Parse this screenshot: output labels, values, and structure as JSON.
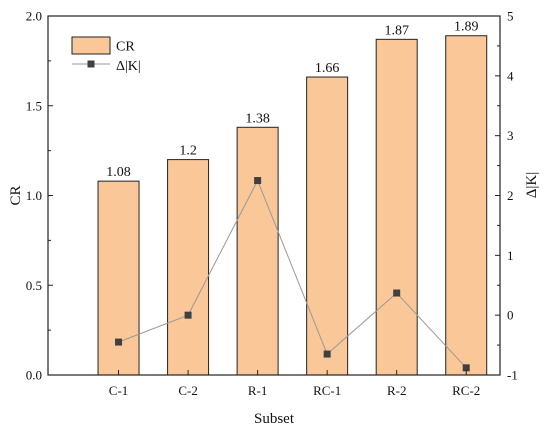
{
  "chart_data": {
    "type": "bar",
    "categories": [
      "C-1",
      "C-2",
      "R-1",
      "RC-1",
      "R-2",
      "RC-2"
    ],
    "series": [
      {
        "name": "CR",
        "type": "bar",
        "axis": "left",
        "values": [
          1.08,
          1.2,
          1.38,
          1.66,
          1.87,
          1.89
        ],
        "labels": [
          "1.08",
          "1.2",
          "1.38",
          "1.66",
          "1.87",
          "1.89"
        ],
        "color": "#fac898"
      },
      {
        "name": "Δ|K|",
        "type": "line",
        "axis": "right",
        "values": [
          -0.45,
          0.0,
          2.25,
          -0.65,
          0.37,
          -0.88
        ],
        "color": "#999999",
        "marker_color": "#404040"
      }
    ],
    "xlabel": "Subset",
    "ylabel": "CR",
    "ylabel_right": "Δ|K|",
    "ylim": [
      0,
      2.0
    ],
    "ylim_right": [
      -1,
      5
    ],
    "yticks": [
      "0.0",
      "0.5",
      "1.0",
      "1.5",
      "2.0"
    ],
    "yticks_right": [
      "-1",
      "0",
      "1",
      "2",
      "3",
      "4",
      "5"
    ],
    "legend": {
      "position": "top-left",
      "entries": [
        "CR",
        "Δ|K|"
      ]
    },
    "grid": false
  }
}
